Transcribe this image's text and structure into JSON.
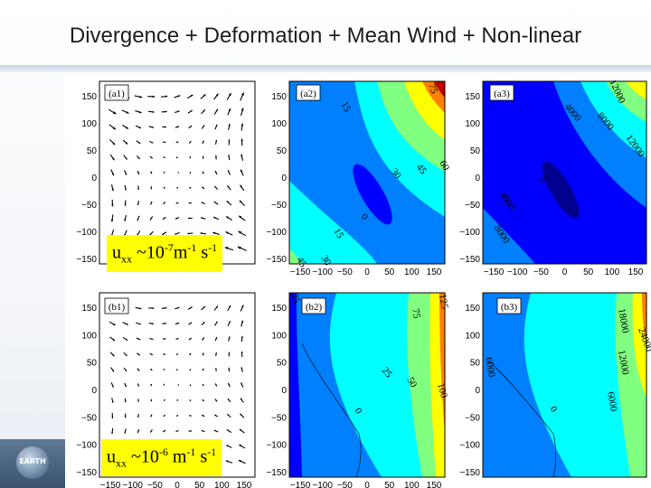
{
  "slide": {
    "title": "Divergence + Deformation + Mean Wind + Non-linear"
  },
  "logo": {
    "text": "EARTH"
  },
  "colors": {
    "jet": [
      "#00008f",
      "#0000ff",
      "#0080ff",
      "#00ffff",
      "#80ff80",
      "#ffff00",
      "#ff8000",
      "#ff0000",
      "#800000"
    ],
    "annotation_bg": "#ffff00"
  },
  "panels": {
    "tick_labels": [
      "150",
      "100",
      "50",
      "0",
      "−50",
      "−100",
      "−150"
    ],
    "x_tick_labels": [
      "−150",
      "−100",
      "−50",
      "0",
      "50",
      "100",
      "150"
    ],
    "a1": {
      "label": "(a1)"
    },
    "a2": {
      "label": "(a2)",
      "contours": [
        "15",
        "30",
        "45",
        "60",
        "0",
        "15",
        "45",
        "30",
        "75"
      ]
    },
    "a3": {
      "label": "(a3)",
      "contours": [
        "4000",
        "8000",
        "12000",
        "0",
        "4000",
        "8000",
        "12000"
      ]
    },
    "b1": {
      "label": "(b1)"
    },
    "b2": {
      "label": "(b2)",
      "contours": [
        "75",
        "125",
        "25",
        "50",
        "100",
        "0",
        "25"
      ]
    },
    "b3": {
      "label": "(b3)",
      "contours": [
        "18000",
        "24000",
        "12000",
        "6000",
        "0",
        "6000"
      ]
    }
  },
  "annotations": {
    "a": {
      "base": "u",
      "sub": "xx",
      "mid": " ~10",
      "exp": "-7",
      "unit1": "m",
      "unit1_exp": "-1",
      "unit2": " s",
      "unit2_exp": "-1"
    },
    "b": {
      "base": "u",
      "sub": "xx",
      "mid": " ~10",
      "exp": "-6",
      "unit1": " m",
      "unit1_exp": "-1",
      "unit2": " s",
      "unit2_exp": "-1"
    }
  }
}
